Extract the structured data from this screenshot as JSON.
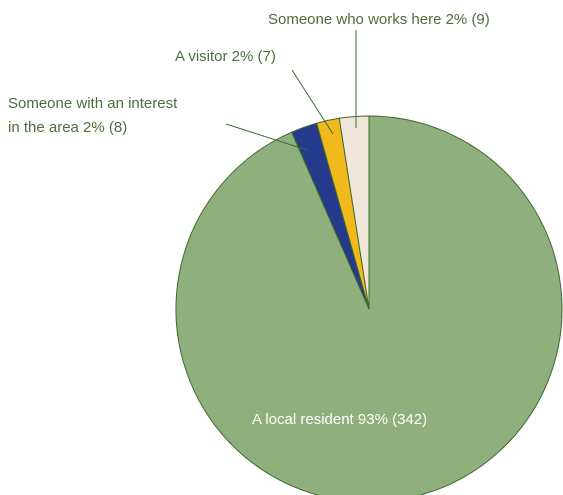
{
  "chart_data": {
    "type": "pie",
    "slices": [
      {
        "label": "A local resident",
        "percent": "93%",
        "count": "(342)",
        "value": 342,
        "color": "#8faf7c"
      },
      {
        "label": "Someone with an interest in the area",
        "percent": "2%",
        "count": "(8)",
        "value": 8,
        "color": "#253a8a"
      },
      {
        "label": "A visitor",
        "percent": "2%",
        "count": "(7)",
        "value": 7,
        "color": "#f2b91c"
      },
      {
        "label": "Someone who works here",
        "percent": "2%",
        "count": "(9)",
        "value": 9,
        "color": "#f1e6da"
      }
    ],
    "labels": {
      "works": "Someone who works here 2% (9)",
      "visitor": "A visitor 2% (7)",
      "interest_line1": "Someone with an interest",
      "interest_line2": "in the area 2% (8)",
      "resident": "A local resident 93% (342)"
    },
    "label_color": "#4b6e3a",
    "outline_color": "#3f6a2e"
  }
}
